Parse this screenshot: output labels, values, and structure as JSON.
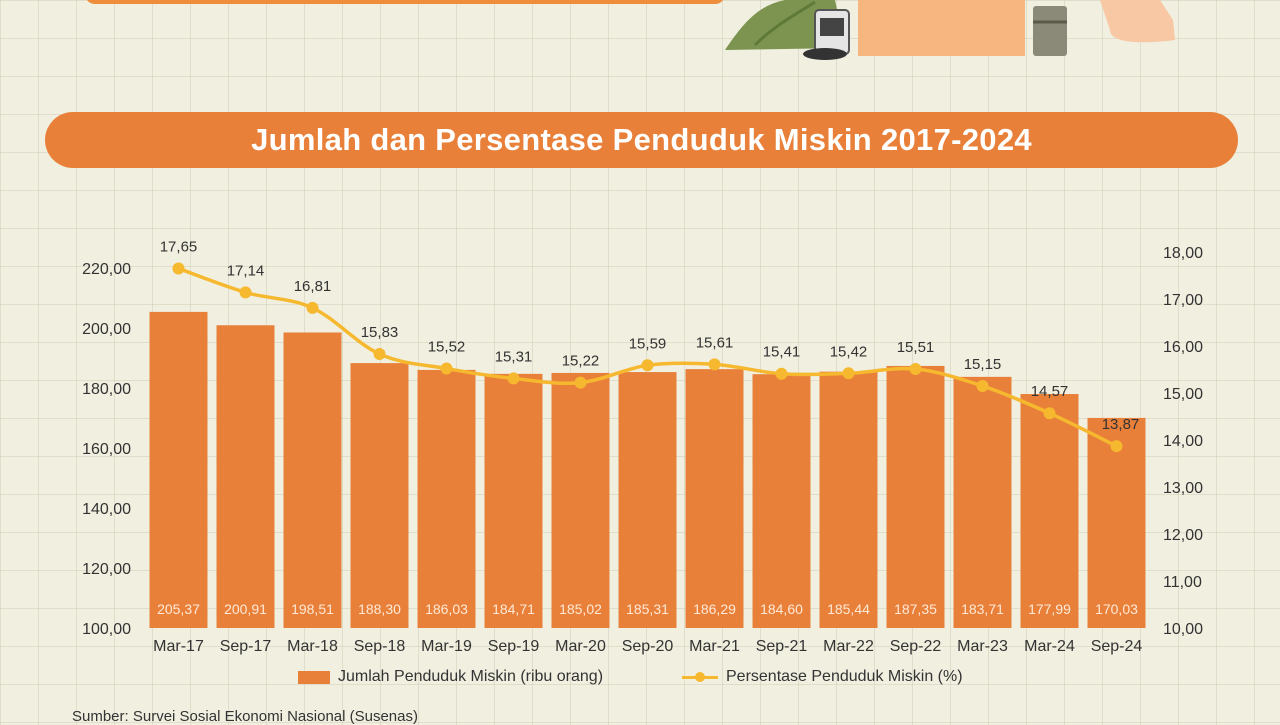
{
  "header": {
    "title": "Jumlah dan Persentase Penduduk Miskin 2017-2024"
  },
  "chart_data": {
    "type": "bar",
    "title": "Jumlah dan Persentase Penduduk Miskin 2017-2024",
    "categories": [
      "Mar-17",
      "Sep-17",
      "Mar-18",
      "Sep-18",
      "Mar-19",
      "Sep-19",
      "Mar-20",
      "Sep-20",
      "Mar-21",
      "Sep-21",
      "Mar-22",
      "Sep-22",
      "Mar-23",
      "Mar-24",
      "Sep-24"
    ],
    "series": [
      {
        "name": "Jumlah Penduduk Miskin (ribu orang)",
        "type": "bar",
        "axis": "left",
        "values": [
          205.37,
          200.91,
          198.51,
          188.3,
          186.03,
          184.71,
          185.02,
          185.31,
          186.29,
          184.6,
          185.44,
          187.35,
          183.71,
          177.99,
          170.03
        ],
        "labels": [
          "205,37",
          "200,91",
          "198,51",
          "188,30",
          "186,03",
          "184,71",
          "185,02",
          "185,31",
          "186,29",
          "184,60",
          "185,44",
          "187,35",
          "183,71",
          "177,99",
          "170,03"
        ]
      },
      {
        "name": "Persentase Penduduk Miskin (%)",
        "type": "line",
        "axis": "right",
        "values": [
          17.65,
          17.14,
          16.81,
          15.83,
          15.52,
          15.31,
          15.22,
          15.59,
          15.61,
          15.41,
          15.42,
          15.51,
          15.15,
          14.57,
          13.87
        ],
        "labels": [
          "17,65",
          "17,14",
          "16,81",
          "15,83",
          "15,52",
          "15,31",
          "15,22",
          "15,59",
          "15,61",
          "15,41",
          "15,42",
          "15,51",
          "15,15",
          "14,57",
          "13,87"
        ]
      }
    ],
    "ylim": [
      100,
      220
    ],
    "y2lim": [
      10,
      18
    ],
    "yticks": [
      "100,00",
      "120,00",
      "140,00",
      "160,00",
      "180,00",
      "200,00",
      "220,00"
    ],
    "y2ticks": [
      "10,00",
      "11,00",
      "12,00",
      "13,00",
      "14,00",
      "15,00",
      "16,00",
      "17,00",
      "18,00"
    ],
    "legend_position": "bottom",
    "grid": false,
    "colors": {
      "bar": "#e8803a",
      "line": "#f5b82e",
      "axis_text": "#333333"
    }
  },
  "source": "Sumber: Survei Sosial Ekonomi Nasional (Susenas)"
}
